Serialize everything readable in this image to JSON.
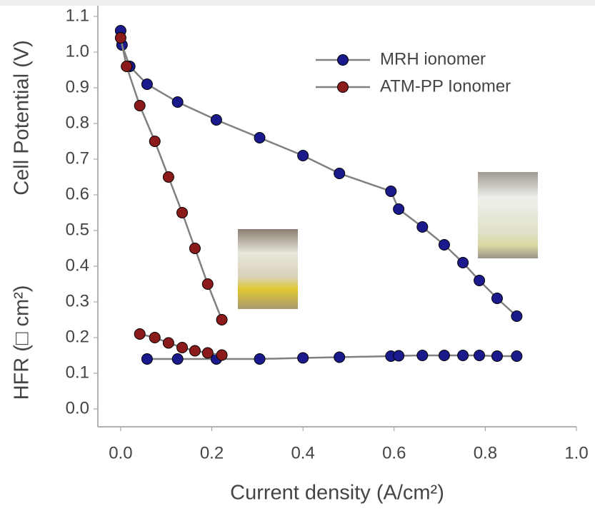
{
  "chart_data": {
    "type": "line",
    "x_label": "Current density (A/cm²)",
    "y_labels": [
      "Cell Potential (V)",
      "HFR (□ cm²)"
    ],
    "xlim": [
      -0.05,
      1.0
    ],
    "ylim": [
      -0.05,
      1.13
    ],
    "xticks": [
      {
        "value": 0,
        "label": "0.0"
      },
      0.2,
      0.4,
      0.6,
      0.8,
      {
        "value": 1,
        "label": "1.0"
      }
    ],
    "yticks": [
      {
        "value": 0,
        "label": "0.0"
      },
      0.1,
      0.2,
      0.3,
      0.4,
      0.5,
      0.6,
      0.7,
      0.8,
      0.9,
      {
        "value": 1,
        "label": "1.0"
      },
      1.1
    ],
    "line_color": "#808080",
    "series": [
      {
        "name": "MRH ionomer",
        "color": "#1a1a8c",
        "x": [
          0,
          0.003,
          0.02,
          0.058,
          0.125,
          0.21,
          0.305,
          0.4,
          0.48,
          0.593,
          0.61,
          0.662,
          0.71,
          0.751,
          0.787,
          0.826,
          0.869
        ],
        "values": [
          1.06,
          1.02,
          0.96,
          0.91,
          0.86,
          0.81,
          0.76,
          0.71,
          0.66,
          0.61,
          0.56,
          0.51,
          0.46,
          0.41,
          0.36,
          0.31,
          0.26
        ]
      },
      {
        "name": "ATM-PP Ionomer",
        "color": "#8b1a1a",
        "x": [
          0,
          0.013,
          0.042,
          0.075,
          0.105,
          0.135,
          0.163,
          0.191,
          0.222
        ],
        "values": [
          1.04,
          0.96,
          0.85,
          0.75,
          0.65,
          0.55,
          0.45,
          0.35,
          0.25
        ]
      },
      {
        "color": "#1a1a8c",
        "x": [
          0.058,
          0.125,
          0.21,
          0.305,
          0.4,
          0.48,
          0.593,
          0.61,
          0.662,
          0.71,
          0.751,
          0.787,
          0.826,
          0.869
        ],
        "values": [
          0.14,
          0.14,
          0.14,
          0.14,
          0.143,
          0.145,
          0.148,
          0.149,
          0.15,
          0.15,
          0.15,
          0.15,
          0.148,
          0.148
        ]
      },
      {
        "color": "#8b1a1a",
        "x": [
          0.042,
          0.075,
          0.105,
          0.135,
          0.163,
          0.191,
          0.222
        ],
        "values": [
          0.21,
          0.2,
          0.185,
          0.172,
          0.163,
          0.157,
          0.151
        ]
      }
    ]
  }
}
